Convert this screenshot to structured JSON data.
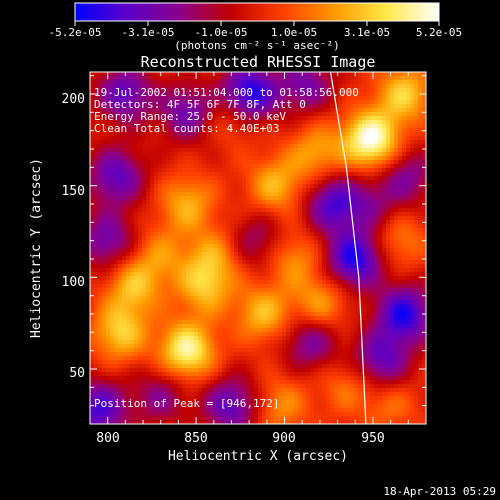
{
  "colorbar": {
    "colors": [
      "#0000ff",
      "#5b00c8",
      "#8b008b",
      "#c00000",
      "#ff4000",
      "#ff9a00",
      "#ffe84a",
      "#ffffff"
    ],
    "tick_labels": [
      "-5.2e-05",
      "-3.1e-05",
      "-1.0e-05",
      "1.0e-05",
      "3.1e-05",
      "5.2e-05"
    ],
    "units_label": "(photons cm⁻² s⁻¹ asec⁻²)"
  },
  "chart_data": {
    "type": "heatmap",
    "title": "Reconstructed RHESSI Image",
    "xlabel": "Heliocentric X (arcsec)",
    "ylabel": "Heliocentric Y (arcsec)",
    "xlim": [
      790,
      980
    ],
    "ylim": [
      20,
      212
    ],
    "xticks": [
      800,
      850,
      900,
      950
    ],
    "yticks": [
      50,
      100,
      150,
      200
    ],
    "zlim": [
      -5.2e-05,
      5.2e-05
    ],
    "annotations": [
      "19-Jul-2002 01:51:04.000 to 01:58:56.000",
      "Detectors: 4F 5F 6F 7F 8F, Att 0",
      "Energy Range: 25.0 - 50.0 keV",
      "Clean     Total counts: 4.40E+03"
    ],
    "peak_text": "Position of Peak = [946,172]",
    "peak": [
      946,
      172
    ],
    "limb_arc": [
      [
        926,
        212
      ],
      [
        935,
        160
      ],
      [
        942,
        100
      ],
      [
        946,
        20
      ]
    ],
    "hotspots": [
      {
        "x": 949,
        "y": 175,
        "value": 5.2e-05
      },
      {
        "x": 968,
        "y": 200,
        "value": 3.2e-05
      },
      {
        "x": 845,
        "y": 60,
        "value": 4.5e-05
      },
      {
        "x": 855,
        "y": 95,
        "value": 2.9e-05
      },
      {
        "x": 807,
        "y": 70,
        "value": 3.2e-05
      },
      {
        "x": 815,
        "y": 95,
        "value": 2.8e-05
      },
      {
        "x": 888,
        "y": 80,
        "value": 2.8e-05
      },
      {
        "x": 845,
        "y": 140,
        "value": 2.6e-05
      },
      {
        "x": 895,
        "y": 150,
        "value": 2.7e-05
      },
      {
        "x": 918,
        "y": 168,
        "value": 2.4e-05
      },
      {
        "x": 920,
        "y": 85,
        "value": 2.4e-05
      },
      {
        "x": 905,
        "y": 110,
        "value": 2.1e-05
      },
      {
        "x": 830,
        "y": 112,
        "value": 1.8e-05
      },
      {
        "x": 860,
        "y": 112,
        "value": 2e-05
      },
      {
        "x": 898,
        "y": 30,
        "value": 2e-05
      },
      {
        "x": 872,
        "y": 188,
        "value": 1.6e-05
      },
      {
        "x": 960,
        "y": 30,
        "value": 1.4e-05
      },
      {
        "x": 965,
        "y": 120,
        "value": 1.8e-05
      },
      {
        "x": 935,
        "y": 40,
        "value": 1.5e-05
      },
      {
        "x": 880,
        "y": 200,
        "value": -5.2e-05
      },
      {
        "x": 940,
        "y": 110,
        "value": -4.8e-05
      },
      {
        "x": 928,
        "y": 140,
        "value": -3.8e-05
      },
      {
        "x": 968,
        "y": 80,
        "value": -4.6e-05
      },
      {
        "x": 955,
        "y": 55,
        "value": -3.4e-05
      },
      {
        "x": 805,
        "y": 155,
        "value": -3.5e-05
      },
      {
        "x": 795,
        "y": 28,
        "value": -4e-05
      },
      {
        "x": 810,
        "y": 200,
        "value": -3.5e-05
      },
      {
        "x": 845,
        "y": 190,
        "value": -3e-05
      },
      {
        "x": 800,
        "y": 120,
        "value": -3e-05
      },
      {
        "x": 870,
        "y": 30,
        "value": -3.5e-05
      },
      {
        "x": 912,
        "y": 205,
        "value": -2.8e-05
      },
      {
        "x": 915,
        "y": 65,
        "value": -2.8e-05
      },
      {
        "x": 885,
        "y": 120,
        "value": -2e-05
      },
      {
        "x": 970,
        "y": 155,
        "value": -2.4e-05
      },
      {
        "x": 830,
        "y": 35,
        "value": -2.2e-05
      },
      {
        "x": 950,
        "y": 140,
        "value": -1.8e-05
      }
    ]
  },
  "footer_timestamp": "18-Apr-2013 05:29"
}
